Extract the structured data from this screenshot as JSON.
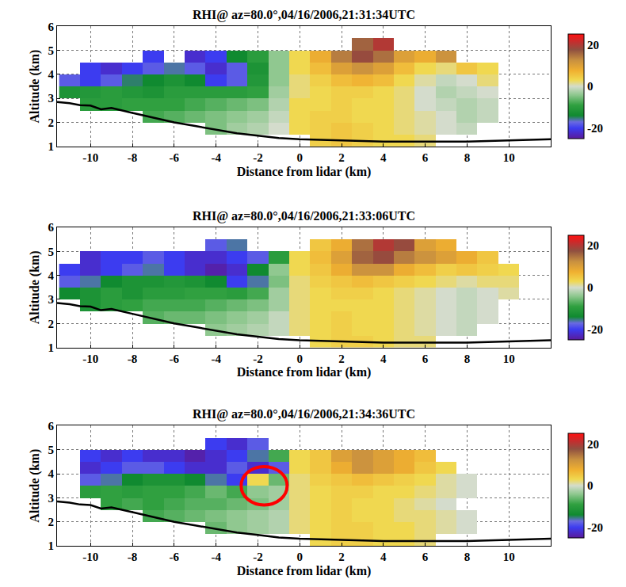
{
  "chart_data": [
    {
      "type": "heatmap",
      "title": "RHI@ az=80.0°,04/16/2006,21:31:34UTC",
      "x_label": "Distance from lidar (km)",
      "y_label": "Altitude (km)",
      "x": [
        -11,
        -10,
        -9,
        -8,
        -7,
        -6,
        -5,
        -4,
        -3,
        -2,
        -1,
        0,
        1,
        2,
        3,
        4,
        5,
        6,
        7,
        8,
        9,
        10,
        11
      ],
      "y": [
        1.25,
        1.75,
        2.25,
        2.75,
        3.25,
        3.75,
        4.25,
        4.75,
        5.25,
        5.75
      ],
      "z": [
        [
          null,
          null,
          null,
          null,
          null,
          null,
          null,
          null,
          null,
          null,
          null,
          null,
          4,
          5,
          4,
          3,
          3,
          2,
          null,
          null,
          null,
          null,
          null
        ],
        [
          null,
          null,
          null,
          null,
          null,
          null,
          null,
          -5,
          -3,
          -2,
          0,
          3,
          4,
          5,
          4,
          3,
          2,
          1,
          0,
          -1,
          null,
          null,
          null
        ],
        [
          null,
          null,
          null,
          null,
          -8,
          -7,
          -6,
          -5,
          -4,
          -3,
          -1,
          3,
          4,
          4,
          3,
          3,
          2,
          1,
          0,
          -2,
          -1,
          null,
          null
        ],
        [
          null,
          -10,
          -10,
          -9,
          -9,
          -9,
          -8,
          -7,
          -6,
          -5,
          -2,
          3,
          3,
          4,
          3,
          3,
          2,
          0,
          -1,
          -2,
          -1,
          null,
          null
        ],
        [
          -12,
          -11,
          -10,
          -11,
          -12,
          -10,
          -10,
          -10,
          -10,
          -9,
          -3,
          2,
          3,
          4,
          4,
          3,
          2,
          0,
          -2,
          -1,
          0,
          null,
          null
        ],
        [
          -18,
          -20,
          -18,
          -15,
          -14,
          -12,
          -14,
          -20,
          -18,
          -11,
          -4,
          2,
          4,
          6,
          7,
          6,
          3,
          1,
          -1,
          0,
          2,
          null,
          null
        ],
        [
          null,
          -20,
          -22,
          -20,
          -18,
          -16,
          -18,
          -22,
          -18,
          -12,
          -4,
          3,
          6,
          10,
          12,
          10,
          6,
          3,
          2,
          5,
          3,
          null,
          null
        ],
        [
          null,
          null,
          null,
          null,
          -20,
          null,
          -22,
          -20,
          -14,
          -10,
          -4,
          3,
          8,
          14,
          18,
          15,
          10,
          8,
          12,
          null,
          null,
          null,
          null
        ],
        [
          null,
          null,
          null,
          null,
          null,
          null,
          null,
          null,
          null,
          null,
          null,
          null,
          null,
          null,
          16,
          20,
          null,
          null,
          null,
          null,
          null,
          null,
          null
        ],
        [
          null,
          null,
          null,
          null,
          null,
          null,
          null,
          null,
          null,
          null,
          null,
          null,
          null,
          null,
          null,
          null,
          null,
          null,
          null,
          null,
          null,
          null,
          null
        ]
      ],
      "xlim": [
        -11.6,
        12
      ],
      "ylim": [
        1,
        6
      ],
      "xticks": [
        -10,
        -8,
        -6,
        -4,
        -2,
        0,
        2,
        4,
        6,
        8,
        10
      ],
      "yticks": [
        1,
        2,
        3,
        4,
        5,
        6
      ],
      "zlim": [
        -25,
        25
      ],
      "zticks": [
        -20,
        0,
        20
      ],
      "grid": true,
      "line": {
        "x": [
          -11.6,
          -11,
          -10.5,
          -10,
          -9.5,
          -9,
          -8,
          -7,
          -6,
          -5,
          -4,
          -3,
          -2,
          -1,
          0,
          2,
          4,
          6,
          8,
          10,
          12
        ],
        "y": [
          2.85,
          2.8,
          2.72,
          2.7,
          2.55,
          2.6,
          2.4,
          2.2,
          2.0,
          1.85,
          1.7,
          1.55,
          1.45,
          1.35,
          1.3,
          1.25,
          1.2,
          1.2,
          1.2,
          1.25,
          1.3
        ],
        "color": "#000000"
      }
    },
    {
      "type": "heatmap",
      "title": "RHI@ az=80.0°,04/16/2006,21:33:06UTC",
      "x_label": "Distance from lidar (km)",
      "y_label": "Altitude (km)",
      "x": [
        -11,
        -10,
        -9,
        -8,
        -7,
        -6,
        -5,
        -4,
        -3,
        -2,
        -1,
        0,
        1,
        2,
        3,
        4,
        5,
        6,
        7,
        8,
        9,
        10,
        11
      ],
      "y": [
        1.25,
        1.75,
        2.25,
        2.75,
        3.25,
        3.75,
        4.25,
        4.75,
        5.25,
        5.75
      ],
      "z": [
        [
          null,
          null,
          null,
          null,
          null,
          null,
          null,
          null,
          null,
          null,
          null,
          null,
          3,
          4,
          4,
          3,
          2,
          2,
          null,
          null,
          null,
          null,
          null
        ],
        [
          null,
          null,
          null,
          null,
          null,
          null,
          null,
          -4,
          -3,
          -2,
          -1,
          2,
          3,
          4,
          3,
          3,
          2,
          1,
          0,
          -1,
          null,
          null,
          null
        ],
        [
          null,
          null,
          null,
          null,
          -7,
          -6,
          -6,
          -5,
          -4,
          -3,
          -1,
          2,
          3,
          4,
          3,
          3,
          2,
          1,
          0,
          -1,
          0,
          null,
          null
        ],
        [
          null,
          -12,
          -10,
          -9,
          -8,
          -8,
          -8,
          -7,
          -6,
          -5,
          -3,
          2,
          3,
          3,
          3,
          3,
          2,
          1,
          0,
          -1,
          0,
          null,
          null
        ],
        [
          -14,
          -12,
          -10,
          -12,
          -10,
          -10,
          -9,
          -9,
          -10,
          -8,
          -3,
          2,
          3,
          4,
          4,
          3,
          2,
          1,
          0,
          -1,
          0,
          1,
          null
        ],
        [
          -18,
          -16,
          -14,
          -12,
          -12,
          -11,
          -12,
          -14,
          -20,
          -16,
          -5,
          2,
          4,
          5,
          6,
          5,
          4,
          3,
          2,
          1,
          2,
          2,
          null
        ],
        [
          -20,
          -22,
          -20,
          -18,
          -16,
          -20,
          -22,
          -24,
          -22,
          -14,
          -4,
          3,
          5,
          8,
          12,
          12,
          8,
          6,
          4,
          5,
          4,
          3,
          null
        ],
        [
          null,
          -22,
          -20,
          -20,
          -18,
          -20,
          -22,
          -22,
          -20,
          -18,
          -10,
          3,
          6,
          10,
          16,
          18,
          14,
          12,
          10,
          8,
          5,
          null,
          null
        ],
        [
          null,
          null,
          null,
          null,
          null,
          null,
          null,
          -18,
          -16,
          null,
          null,
          null,
          5,
          8,
          15,
          20,
          18,
          10,
          8,
          null,
          null,
          null,
          null
        ],
        [
          null,
          null,
          null,
          null,
          null,
          null,
          null,
          null,
          null,
          null,
          null,
          null,
          null,
          null,
          null,
          null,
          null,
          null,
          null,
          null,
          null,
          null,
          null
        ]
      ],
      "xlim": [
        -11.6,
        12
      ],
      "ylim": [
        1,
        6
      ],
      "xticks": [
        -10,
        -8,
        -6,
        -4,
        -2,
        0,
        2,
        4,
        6,
        8,
        10
      ],
      "yticks": [
        1,
        2,
        3,
        4,
        5,
        6
      ],
      "zlim": [
        -25,
        25
      ],
      "zticks": [
        -20,
        0,
        20
      ],
      "grid": true,
      "line": {
        "x": [
          -11.6,
          -11,
          -10.5,
          -10,
          -9.5,
          -9,
          -8,
          -7,
          -6,
          -5,
          -4,
          -3,
          -2,
          -1,
          0,
          2,
          4,
          6,
          8,
          10,
          12
        ],
        "y": [
          2.85,
          2.8,
          2.72,
          2.7,
          2.55,
          2.6,
          2.4,
          2.2,
          2.0,
          1.85,
          1.7,
          1.55,
          1.45,
          1.35,
          1.3,
          1.25,
          1.2,
          1.2,
          1.2,
          1.25,
          1.3
        ],
        "color": "#000000"
      }
    },
    {
      "type": "heatmap",
      "title": "RHI@ az=80.0°,04/16/2006,21:34:36UTC",
      "x_label": "Distance from lidar (km)",
      "y_label": "Altitude (km)",
      "x": [
        -11,
        -10,
        -9,
        -8,
        -7,
        -6,
        -5,
        -4,
        -3,
        -2,
        -1,
        0,
        1,
        2,
        3,
        4,
        5,
        6,
        7,
        8,
        9,
        10,
        11
      ],
      "y": [
        1.25,
        1.75,
        2.25,
        2.75,
        3.25,
        3.75,
        4.25,
        4.75,
        5.25,
        5.75
      ],
      "z": [
        [
          null,
          null,
          null,
          null,
          null,
          null,
          null,
          null,
          null,
          null,
          null,
          null,
          3,
          4,
          4,
          3,
          3,
          2,
          null,
          null,
          null,
          null,
          null
        ],
        [
          null,
          null,
          null,
          null,
          null,
          null,
          null,
          -6,
          -4,
          -3,
          -2,
          2,
          3,
          4,
          4,
          3,
          3,
          2,
          1,
          0,
          null,
          null,
          null
        ],
        [
          null,
          null,
          null,
          null,
          -8,
          -7,
          -6,
          -5,
          -4,
          -3,
          -2,
          2,
          3,
          4,
          3,
          3,
          2,
          2,
          1,
          0,
          null,
          null,
          null
        ],
        [
          null,
          null,
          -9,
          -8,
          -9,
          -8,
          -7,
          -7,
          -6,
          -5,
          -3,
          2,
          3,
          4,
          3,
          3,
          2,
          1,
          0,
          null,
          null,
          null,
          null
        ],
        [
          null,
          -10,
          -9,
          -10,
          -9,
          -9,
          -8,
          -6,
          -8,
          -4,
          -3,
          2,
          3,
          4,
          4,
          3,
          3,
          2,
          1,
          0,
          null,
          null,
          null
        ],
        [
          null,
          -18,
          -16,
          -14,
          -12,
          -12,
          -14,
          -16,
          -20,
          3,
          -6,
          2,
          4,
          5,
          6,
          5,
          4,
          3,
          1,
          0,
          null,
          null,
          null
        ],
        [
          null,
          -22,
          -20,
          -18,
          -18,
          -20,
          -22,
          -22,
          -18,
          -22,
          -18,
          3,
          5,
          8,
          12,
          10,
          8,
          5,
          3,
          null,
          null,
          null,
          null
        ],
        [
          null,
          -20,
          -22,
          -20,
          -22,
          -22,
          -24,
          -22,
          -20,
          -16,
          -8,
          3,
          5,
          10,
          12,
          10,
          8,
          6,
          null,
          null,
          null,
          null,
          null
        ],
        [
          null,
          null,
          null,
          null,
          null,
          null,
          null,
          -20,
          -22,
          -18,
          null,
          null,
          null,
          null,
          null,
          null,
          null,
          null,
          null,
          null,
          null,
          null,
          null
        ],
        [
          null,
          null,
          null,
          null,
          null,
          null,
          null,
          null,
          null,
          null,
          null,
          null,
          null,
          null,
          null,
          null,
          null,
          null,
          null,
          null,
          null,
          null,
          null
        ]
      ],
      "xlim": [
        -11.6,
        12
      ],
      "ylim": [
        1,
        6
      ],
      "xticks": [
        -10,
        -8,
        -6,
        -4,
        -2,
        0,
        2,
        4,
        6,
        8,
        10
      ],
      "yticks": [
        1,
        2,
        3,
        4,
        5,
        6
      ],
      "zlim": [
        -25,
        25
      ],
      "zticks": [
        -20,
        0,
        20
      ],
      "grid": true,
      "line": {
        "x": [
          -11.6,
          -11,
          -10.5,
          -10,
          -9.5,
          -9,
          -8,
          -7,
          -6,
          -5,
          -4,
          -3,
          -2,
          -1,
          0,
          2,
          4,
          6,
          8,
          10,
          12
        ],
        "y": [
          2.85,
          2.8,
          2.72,
          2.7,
          2.55,
          2.6,
          2.4,
          2.2,
          2.0,
          1.85,
          1.7,
          1.55,
          1.45,
          1.35,
          1.3,
          1.25,
          1.2,
          1.2,
          1.2,
          1.25,
          1.3
        ],
        "color": "#000000"
      },
      "circle": {
        "x": [
          -2.8,
          -0.6
        ],
        "y": [
          2.7,
          4.3
        ],
        "color": "#ff0000"
      }
    }
  ]
}
